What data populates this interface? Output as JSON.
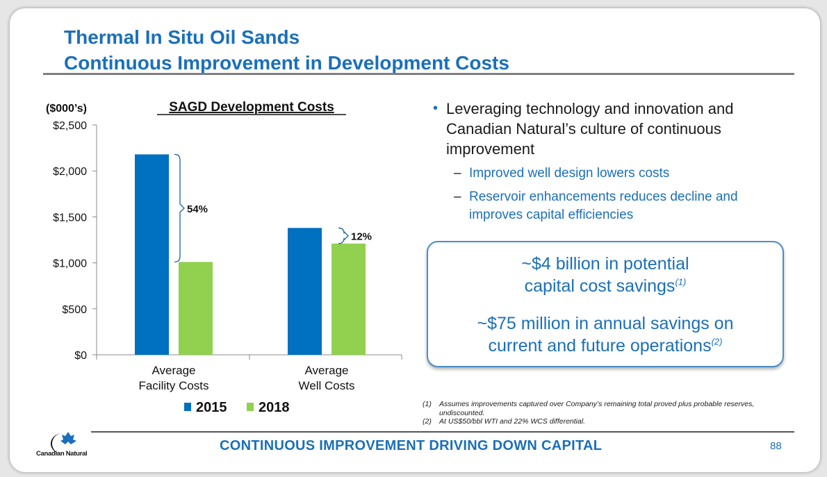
{
  "slide": {
    "title_line1": "Thermal In Situ Oil Sands",
    "title_line2": "Continuous Improvement in Development Costs",
    "tagline": "CONTINUOUS IMPROVEMENT DRIVING DOWN CAPITAL",
    "page_number": "88",
    "logo_text": "Canadian Natural"
  },
  "bullets": {
    "main": "Leveraging technology and innovation and Canadian Natural’s culture of continuous improvement",
    "sub": [
      "Improved well design lowers costs",
      "Reservoir enhancements reduces decline and improves capital efficiencies"
    ]
  },
  "callout": {
    "line1": "~$4 billion in potential",
    "line2": "capital cost savings",
    "line2_note": "(1)",
    "line3": "~$75 million in annual savings on",
    "line4": "current and future operations",
    "line4_note": "(2)"
  },
  "footnotes": [
    {
      "num": "(1)",
      "text": "Assumes improvements captured over Company’s remaining total proved plus probable reserves, undiscounted."
    },
    {
      "num": "(2)",
      "text": "At US$50/bbl WTI and 22% WCS differential."
    }
  ],
  "colors": {
    "brand_blue": "#1a6fba",
    "series_2015": "#0070c0",
    "series_2018": "#92d050"
  },
  "chart_data": {
    "type": "bar",
    "title": "SAGD Development Costs",
    "unit_label": "($000’s)",
    "categories": [
      [
        "Average",
        "Facility Costs"
      ],
      [
        "Average",
        "Well Costs"
      ]
    ],
    "series": [
      {
        "name": "2015",
        "color": "#0070c0",
        "values": [
          2180,
          1380
        ]
      },
      {
        "name": "2018",
        "color": "#92d050",
        "values": [
          1010,
          1210
        ]
      }
    ],
    "ylim": [
      0,
      2500
    ],
    "yticks": [
      0,
      500,
      1000,
      1500,
      2000,
      2500
    ],
    "ytick_labels": [
      "$0",
      "$500",
      "$1,000",
      "$1,500",
      "$2,000",
      "$2,500"
    ],
    "annotations": [
      {
        "category": 0,
        "label": "54%"
      },
      {
        "category": 1,
        "label": "12%"
      }
    ],
    "grid": false,
    "legend": "bottom"
  }
}
